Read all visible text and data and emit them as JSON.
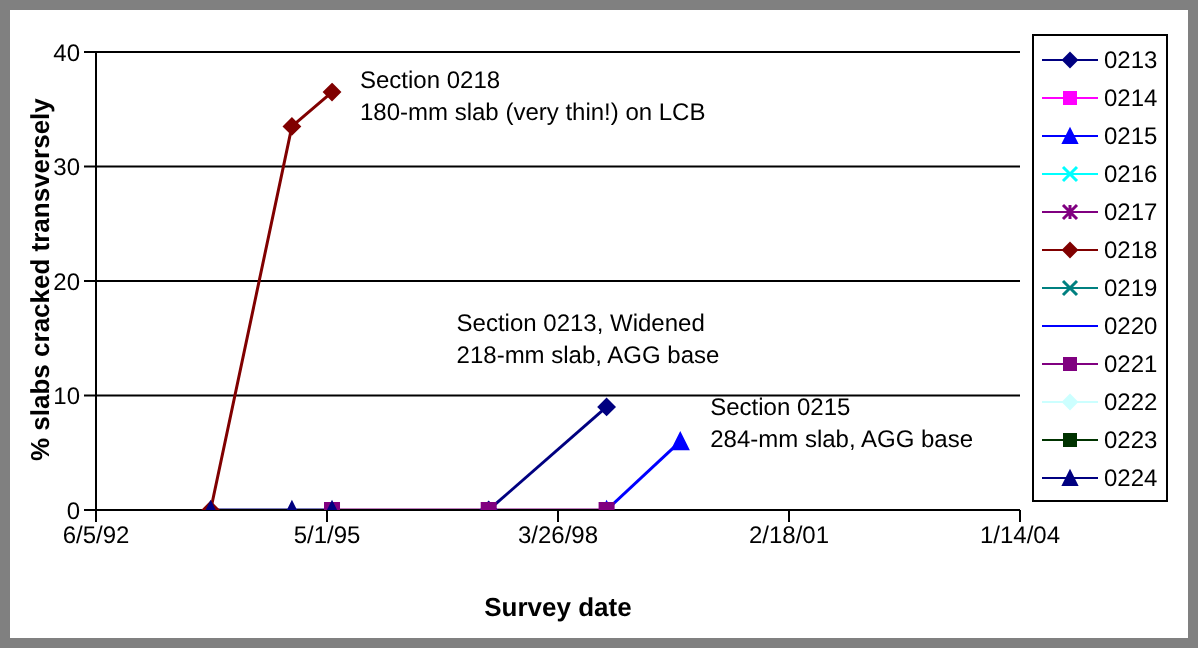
{
  "chart_data": {
    "type": "line",
    "xlabel": "Survey date",
    "ylabel": "% slabs cracked transversely",
    "xlim": [
      "1992-06-05",
      "2004-01-14"
    ],
    "xticks": [
      {
        "value": "1992-06-05",
        "label": "6/5/92"
      },
      {
        "value": "1995-05-01",
        "label": "5/1/95"
      },
      {
        "value": "1998-03-26",
        "label": "3/26/98"
      },
      {
        "value": "2001-02-18",
        "label": "2/18/01"
      },
      {
        "value": "2004-01-14",
        "label": "1/14/04"
      }
    ],
    "ylim": [
      0,
      40
    ],
    "yticks": [
      0,
      10,
      20,
      30,
      40
    ],
    "grid": "y",
    "legend": "right",
    "series": [
      {
        "name": "0213",
        "color": "#000080",
        "marker": "diamond",
        "x": [
          "1997-05-12",
          "1998-11-04"
        ],
        "values": [
          0,
          9
        ]
      },
      {
        "name": "0214",
        "color": "#ff00ff",
        "marker": "square"
      },
      {
        "name": "0215",
        "color": "#0000ff",
        "marker": "triangle",
        "x": [
          "1998-11-04",
          "1999-10-08"
        ],
        "values": [
          0,
          6
        ]
      },
      {
        "name": "0216",
        "color": "#00ffff",
        "marker": "cross"
      },
      {
        "name": "0217",
        "color": "#800080",
        "marker": "star"
      },
      {
        "name": "0218",
        "color": "#800000",
        "marker": "diamond",
        "x": [
          "1993-11-13",
          "1994-11-21",
          "1995-05-24"
        ],
        "values": [
          0,
          33.5,
          36.5
        ]
      },
      {
        "name": "0219",
        "color": "#008080",
        "marker": "cross"
      },
      {
        "name": "0220",
        "color": "#0000ff",
        "marker": "none"
      },
      {
        "name": "0221",
        "color": "#800080",
        "marker": "square",
        "x": [
          "1995-05-24",
          "1997-05-12",
          "1998-11-04"
        ],
        "values": [
          0,
          0,
          0
        ]
      },
      {
        "name": "0222",
        "color": "#ccffff",
        "marker": "diamond"
      },
      {
        "name": "0223",
        "color": "#003300",
        "marker": "square"
      },
      {
        "name": "0224",
        "color": "#000080",
        "marker": "triangle",
        "x": [
          "1993-11-13",
          "1994-11-21",
          "1995-05-24"
        ],
        "values": [
          0,
          0,
          0
        ]
      }
    ],
    "annotations": [
      {
        "text": "Section 0218\n180-mm slab (very thin!) on LCB",
        "x": "1995-05-24",
        "y": 36.5
      },
      {
        "text": "Section 0213, Widened\n218-mm slab, AGG base",
        "x": "1998-11-04",
        "y": 9
      },
      {
        "text": "Section 0215\n284-mm slab, AGG base",
        "x": "1999-10-08",
        "y": 6
      }
    ]
  }
}
